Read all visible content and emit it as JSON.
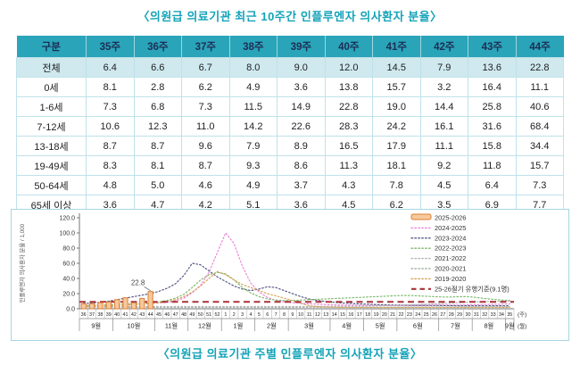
{
  "table_title": "〈의원급 의료기관 최근 10주간 인플루엔자 의사환자 분율〉",
  "chart_title": "〈의원급 의료기관 주별 인플루엔자 의사환자 분율〉",
  "table": {
    "columns": [
      "구분",
      "35주",
      "36주",
      "37주",
      "38주",
      "39주",
      "40주",
      "41주",
      "42주",
      "43주",
      "44주"
    ],
    "rows": [
      {
        "label": "전체",
        "highlight": true,
        "values": [
          "6.4",
          "6.6",
          "6.7",
          "8.0",
          "9.0",
          "12.0",
          "14.5",
          "7.9",
          "13.6",
          "22.8"
        ]
      },
      {
        "label": "0세",
        "highlight": false,
        "values": [
          "8.1",
          "2.8",
          "6.2",
          "4.9",
          "3.6",
          "13.8",
          "15.7",
          "3.2",
          "16.4",
          "11.1"
        ]
      },
      {
        "label": "1-6세",
        "highlight": false,
        "values": [
          "7.3",
          "6.8",
          "7.3",
          "11.5",
          "14.9",
          "22.8",
          "19.0",
          "14.4",
          "25.8",
          "40.6"
        ]
      },
      {
        "label": "7-12세",
        "highlight": false,
        "values": [
          "10.6",
          "12.3",
          "11.0",
          "14.2",
          "22.6",
          "28.3",
          "24.2",
          "16.1",
          "31.6",
          "68.4"
        ]
      },
      {
        "label": "13-18세",
        "highlight": false,
        "values": [
          "8.7",
          "8.7",
          "9.6",
          "7.9",
          "8.9",
          "16.5",
          "17.9",
          "11.1",
          "15.8",
          "34.4"
        ]
      },
      {
        "label": "19-49세",
        "highlight": false,
        "values": [
          "8.3",
          "8.1",
          "8.7",
          "9.3",
          "8.6",
          "11.3",
          "18.1",
          "9.2",
          "11.8",
          "15.7"
        ]
      },
      {
        "label": "50-64세",
        "highlight": false,
        "values": [
          "4.8",
          "5.0",
          "4.6",
          "4.9",
          "3.7",
          "4.3",
          "7.8",
          "4.5",
          "6.4",
          "7.3"
        ]
      },
      {
        "label": "65세 이상",
        "highlight": false,
        "values": [
          "3.6",
          "4.7",
          "4.2",
          "5.1",
          "3.6",
          "4.5",
          "6.2",
          "3.5",
          "6.9",
          "7.7"
        ]
      }
    ]
  },
  "chart_data": {
    "type": "bar+line",
    "ylabel": "인플루엔자 의사환자 분율 / 1,000",
    "ylim": [
      0,
      120
    ],
    "yticks": [
      0,
      20,
      40,
      60,
      80,
      100,
      120
    ],
    "x_unit": "(주)",
    "month_unit": "(월)",
    "weeks": [
      36,
      37,
      38,
      39,
      40,
      41,
      42,
      43,
      44,
      45,
      46,
      47,
      48,
      49,
      50,
      51,
      52,
      1,
      2,
      3,
      4,
      5,
      6,
      7,
      8,
      9,
      10,
      11,
      12,
      13,
      14,
      15,
      16,
      17,
      18,
      19,
      20,
      21,
      22,
      23,
      24,
      25,
      26,
      27,
      28,
      29,
      30,
      31,
      32,
      33,
      34,
      35
    ],
    "months": [
      {
        "label": "9월",
        "span": 4
      },
      {
        "label": "10월",
        "span": 5
      },
      {
        "label": "11월",
        "span": 4
      },
      {
        "label": "12월",
        "span": 4
      },
      {
        "label": "1월",
        "span": 4
      },
      {
        "label": "2월",
        "span": 4
      },
      {
        "label": "3월",
        "span": 5
      },
      {
        "label": "4월",
        "span": 4
      },
      {
        "label": "5월",
        "span": 4
      },
      {
        "label": "6월",
        "span": 5
      },
      {
        "label": "7월",
        "span": 4
      },
      {
        "label": "8월",
        "span": 4
      },
      {
        "label": "9월",
        "span": 1
      }
    ],
    "bar_series": {
      "name": "2025-2026",
      "stroke": "#dd7e33",
      "fill": "#f7c99c",
      "start_week_index": 0,
      "values": [
        6.6,
        6.7,
        8.0,
        9.0,
        12.0,
        14.5,
        7.9,
        13.6,
        22.8
      ]
    },
    "annotation": {
      "text": "22.8",
      "bar_index": 8,
      "value": 22.8
    },
    "line_series": [
      {
        "name": "2024-2025",
        "color": "#ec87d8",
        "values": [
          4.5,
          4.8,
          5.0,
          5.2,
          5.5,
          6.0,
          6.3,
          6.6,
          7.0,
          7.5,
          8.5,
          10.5,
          14,
          21,
          31,
          48,
          74,
          100,
          86,
          56,
          34,
          22,
          15,
          11,
          9,
          8,
          7.2,
          6.5,
          6.0,
          5.5,
          5.2,
          5.0,
          4.8,
          4.6,
          4.5,
          4.4,
          4.3,
          4.2,
          4.2,
          4.3,
          4.5,
          4.6,
          4.8,
          5.0,
          5.0,
          5.0,
          5.2,
          5.4,
          5.6,
          5.8,
          6.0,
          6.4
        ]
      },
      {
        "name": "2023-2024",
        "color": "#565a88",
        "values": [
          7,
          7.5,
          8.5,
          10,
          12,
          14,
          16,
          18,
          20,
          23,
          27,
          33,
          44,
          60,
          58,
          50,
          42,
          36,
          30,
          26,
          24,
          26,
          29,
          28,
          24,
          20,
          16,
          13,
          11,
          9.5,
          8.5,
          7.5,
          7,
          6.5,
          6,
          5.5,
          5.2,
          5,
          4.8,
          4.6,
          4.5,
          4.4,
          4.3,
          4.2,
          4.1,
          4,
          4,
          4,
          4,
          4,
          4,
          4
        ]
      },
      {
        "name": "2022-2023",
        "color": "#7eba6c",
        "values": [
          4.5,
          4.7,
          5,
          5.2,
          5.5,
          6,
          6.5,
          7,
          7.5,
          9,
          11,
          14,
          19,
          28,
          38,
          45,
          48,
          46,
          38,
          28,
          21,
          16,
          13,
          11.5,
          11,
          11,
          11.5,
          12,
          12.5,
          13,
          13.5,
          14,
          14.5,
          15,
          15.5,
          16,
          16.5,
          17,
          17.5,
          17.5,
          17,
          16.5,
          16,
          15.5,
          15.5,
          16,
          16,
          15,
          13.5,
          12.5,
          11.5,
          11
        ]
      },
      {
        "name": "2021-2022",
        "color": "#b9b3bd",
        "values": [
          2.8,
          2.8,
          2.9,
          2.9,
          3,
          3,
          3,
          3,
          3,
          3,
          3,
          3,
          3,
          3,
          3,
          3,
          3,
          3,
          3,
          3,
          3,
          3,
          3,
          3,
          3,
          3,
          3,
          3,
          3.2,
          3.2,
          3.3,
          3.4,
          3.5,
          3.6,
          3.8,
          4,
          4.2,
          4.5,
          4.8,
          5.2,
          5.6,
          6,
          6.5,
          7,
          7.5,
          8,
          8.5,
          9,
          9.5,
          9.8,
          10,
          10
        ]
      },
      {
        "name": "2020-2021",
        "color": "#a9b8ab",
        "values": [
          2.2,
          2.1,
          2.1,
          2,
          2,
          2,
          1.9,
          1.9,
          1.9,
          1.8,
          1.8,
          1.8,
          1.8,
          1.8,
          1.8,
          1.8,
          1.8,
          1.8,
          1.8,
          1.8,
          1.8,
          1.8,
          1.8,
          1.8,
          1.8,
          1.8,
          1.9,
          1.9,
          1.9,
          2,
          2,
          2,
          2,
          2,
          2.1,
          2.1,
          2.1,
          2.1,
          2.2,
          2.2,
          2.2,
          2.2,
          2.3,
          2.3,
          2.3,
          2.3,
          2.4,
          2.4,
          2.4,
          2.5,
          2.5,
          2.5
        ]
      },
      {
        "name": "2019-2020",
        "color": "#d8a35a",
        "values": [
          3.5,
          3.7,
          4,
          4.2,
          4.5,
          5,
          5.5,
          6,
          7,
          8,
          9.5,
          12,
          16,
          22,
          30,
          40,
          49,
          45,
          38,
          32,
          28,
          24,
          20,
          17,
          14,
          11,
          7,
          4,
          2.8,
          2.2,
          2,
          1.9,
          1.8,
          1.8,
          1.8,
          1.8,
          1.8,
          1.8,
          1.8,
          1.8,
          1.8,
          1.8,
          1.8,
          1.8,
          1.8,
          1.8,
          1.8,
          1.8,
          1.8,
          1.8,
          1.8,
          1.8
        ]
      }
    ],
    "threshold": {
      "name": "25-26절기 유행기준(9.1명)",
      "value": 9.1,
      "color": "#a93238"
    },
    "legend_position": "top-right",
    "grid": false
  }
}
